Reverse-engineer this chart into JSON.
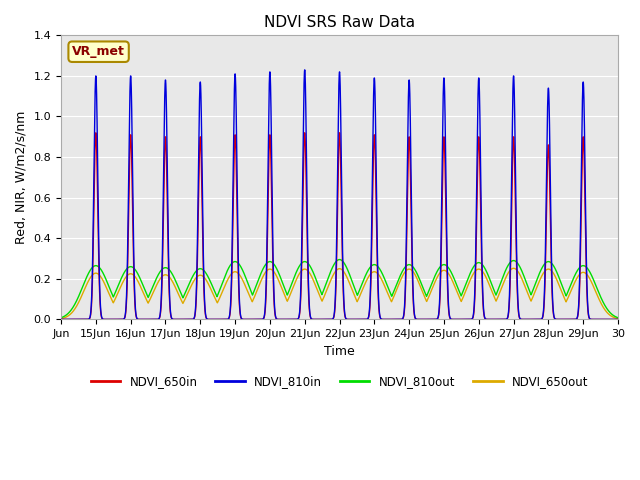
{
  "title": "NDVI SRS Raw Data",
  "xlabel": "Time",
  "ylabel": "Red, NIR, W/m2/s/nm",
  "ylim": [
    0.0,
    1.4
  ],
  "background_color": "#ffffff",
  "plot_bg_color": "#e8e8e8",
  "annotation_text": "VR_met",
  "legend_entries": [
    "NDVI_650in",
    "NDVI_810in",
    "NDVI_810out",
    "NDVI_650out"
  ],
  "line_colors": [
    "#dd0000",
    "#0000dd",
    "#00dd00",
    "#ddaa00"
  ],
  "title_fontsize": 11,
  "tick_fontsize": 8,
  "label_fontsize": 9,
  "days": [
    15,
    16,
    17,
    18,
    19,
    20,
    21,
    22,
    23,
    24,
    25,
    26,
    27,
    28,
    29
  ],
  "peak_650in": [
    0.92,
    0.91,
    0.9,
    0.9,
    0.91,
    0.91,
    0.92,
    0.92,
    0.91,
    0.9,
    0.9,
    0.9,
    0.9,
    0.86,
    0.9
  ],
  "peak_810in": [
    1.2,
    1.2,
    1.18,
    1.17,
    1.21,
    1.22,
    1.23,
    1.22,
    1.19,
    1.18,
    1.19,
    1.19,
    1.2,
    1.14,
    1.17
  ],
  "peak_810out": [
    0.265,
    0.26,
    0.255,
    0.25,
    0.285,
    0.285,
    0.285,
    0.295,
    0.27,
    0.27,
    0.27,
    0.28,
    0.29,
    0.285,
    0.265
  ],
  "peak_650out": [
    0.228,
    0.225,
    0.22,
    0.218,
    0.235,
    0.248,
    0.248,
    0.25,
    0.235,
    0.248,
    0.242,
    0.248,
    0.252,
    0.248,
    0.232
  ],
  "xtick_positions": [
    14,
    15,
    16,
    17,
    18,
    19,
    20,
    21,
    22,
    23,
    24,
    25,
    26,
    27,
    28,
    29,
    30
  ],
  "xtick_labels": [
    "Jun",
    "15Jun",
    "16Jun",
    "17Jun",
    "18Jun",
    "19Jun",
    "20Jun",
    "21Jun",
    "22Jun",
    "23Jun",
    "24Jun",
    "25Jun",
    "26Jun",
    "27Jun",
    "28Jun",
    "29Jun",
    "30"
  ]
}
